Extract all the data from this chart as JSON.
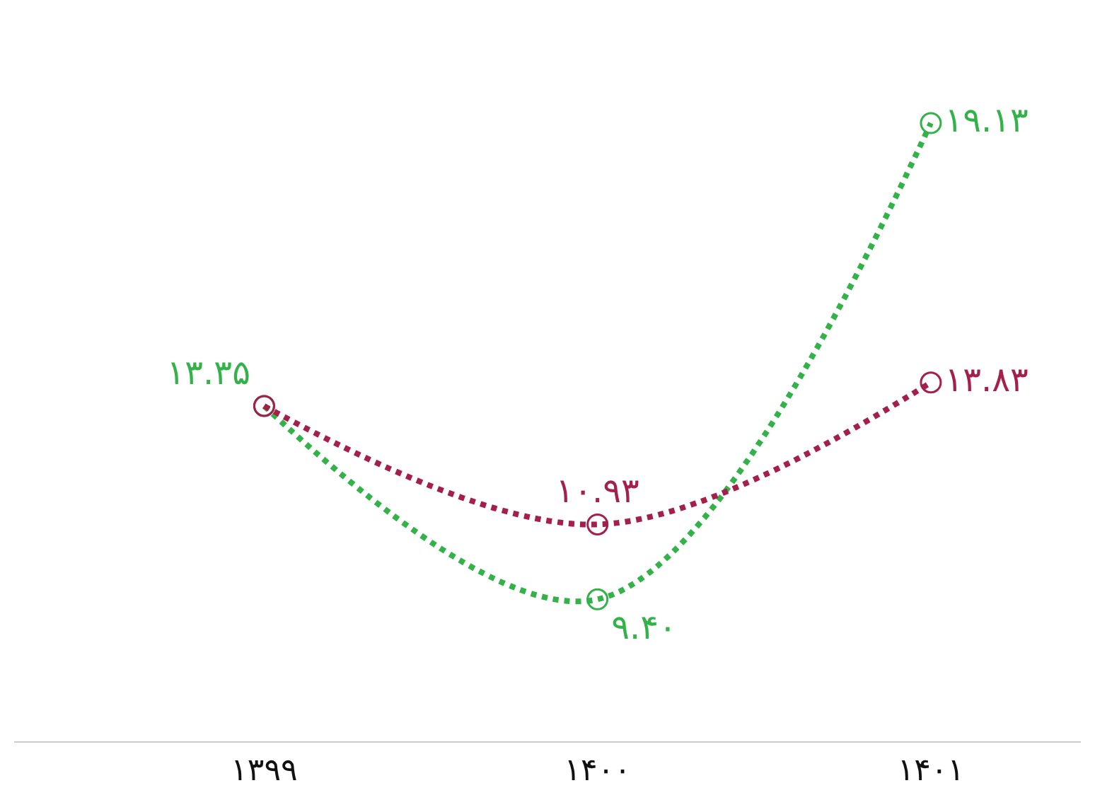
{
  "chart_data": {
    "type": "line",
    "categories": [
      "۱۳۹۹",
      "۱۴۰۰",
      "۱۴۰۱"
    ],
    "series": [
      {
        "color": "#a51f4b",
        "values": [
          13.35,
          10.93,
          13.83
        ],
        "value_labels": [
          null,
          "۱۰.۹۳",
          "۱۳.۸۳"
        ]
      },
      {
        "color": "#34b24a",
        "values": [
          13.35,
          9.4,
          19.13
        ],
        "value_labels": [
          "۱۳.۳۵",
          "۹.۴۰",
          "۱۹.۱۳"
        ]
      }
    ],
    "line_style": "dotted",
    "marker": "circle",
    "tick_labels": "x"
  }
}
